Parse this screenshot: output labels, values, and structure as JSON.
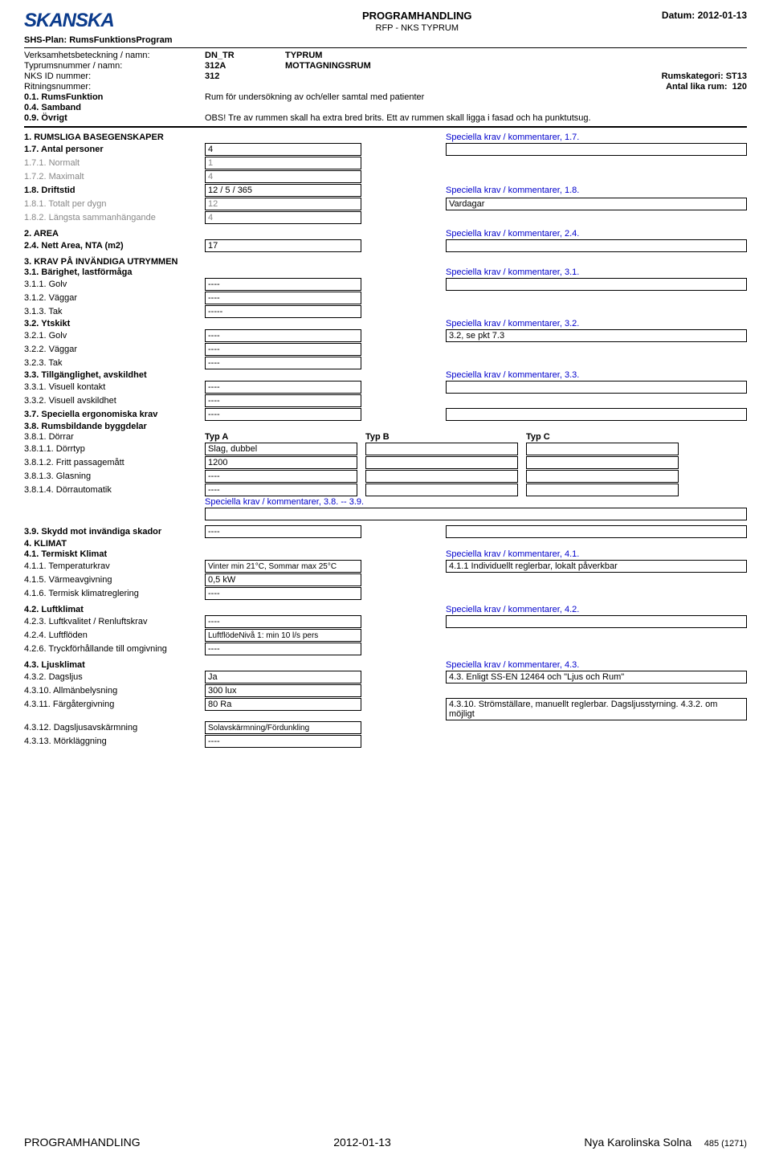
{
  "header": {
    "logo": "SKANSKA",
    "title": "PROGRAMHANDLING",
    "subtitle": "RFP -  NKS TYPRUM",
    "datum_label": "Datum:",
    "datum": "2012-01-13",
    "shs": "SHS-Plan: RumsFunktionsProgram"
  },
  "meta": {
    "r1l": "Verksamhetsbeteckning / namn:",
    "r1c1": "DN_TR",
    "r1c2": "TYPRUM",
    "r2l": "Typrumsnummer / namn:",
    "r2c1": "312A",
    "r2c2": "MOTTAGNINGSRUM",
    "r3l": "NKS ID nummer:",
    "r3c1": "312",
    "r3r_l": "Rumskategori:",
    "r3r_v": "ST13",
    "r4l": "Ritningsnummer:",
    "r4r_l": "Antal lika rum:",
    "r4r_v": "120",
    "r5l": "0.1. RumsFunktion",
    "r5v": "Rum för undersökning av och/eller samtal med patienter",
    "r6l": "0.4. Samband",
    "r7l": "0.9. Övrigt",
    "r7v": "OBS! Tre av rummen skall ha extra bred brits. Ett av rummen skall ligga i fasad och ha punktutsug."
  },
  "s1": {
    "h": "1. RUMSLIGA BASEGENSKAPER",
    "hc": "Speciella krav / kommentarer, 1.7.",
    "r1l": "1.7. Antal personer",
    "r1v": "4",
    "r2l": "1.7.1. Normalt",
    "r2v": "1",
    "r3l": "1.7.2. Maximalt",
    "r3v": "4",
    "r4l": "1.8. Driftstid",
    "r4v": "12 / 5 / 365",
    "r4c": "Speciella krav / kommentarer, 1.8.",
    "r5l": "1.8.1. Totalt per dygn",
    "r5v": "12",
    "r5c": "Vardagar",
    "r6l": "1.8.2. Längsta sammanhängande",
    "r6v": "4"
  },
  "s2": {
    "h": "2. AREA",
    "hc": "Speciella krav / kommentarer, 2.4.",
    "r1l": "2.4. Nett Area, NTA (m2)",
    "r1v": "17"
  },
  "s3": {
    "h": "3. KRAV PÅ INVÄNDIGA UTRYMMEN",
    "h31": "3.1. Bärighet, lastförmåga",
    "h31c": "Speciella krav / kommentarer, 3.1.",
    "r311l": "3.1.1. Golv",
    "r311v": "----",
    "r312l": "3.1.2. Väggar",
    "r312v": "----",
    "r313l": "3.1.3. Tak",
    "r313v": "-----",
    "h32": "3.2. Ytskikt",
    "h32c": "Speciella krav / kommentarer, 3.2.",
    "r321l": "3.2.1. Golv",
    "r321v": "----",
    "r321c": "3.2, se pkt 7.3",
    "r322l": "3.2.2. Väggar",
    "r322v": "----",
    "r323l": "3.2.3. Tak",
    "r323v": "----",
    "h33": "3.3. Tillgänglighet, avskildhet",
    "h33c": "Speciella krav / kommentarer, 3.3.",
    "r331l": "3.3.1. Visuell kontakt",
    "r331v": "----",
    "r332l": "3.3.2. Visuell avskildhet",
    "r332v": "----",
    "h37": "3.7. Speciella ergonomiska krav",
    "r37v": "----",
    "h38": "3.8. Rumsbildande byggdelar",
    "r381l": "3.8.1. Dörrar",
    "typA": "Typ A",
    "typB": "Typ B",
    "typC": "Typ C",
    "r3811l": "3.8.1.1. Dörrtyp",
    "r3811a": "Slag, dubbel",
    "r3812l": "3.8.1.2. Fritt passagemått",
    "r3812a": "1200",
    "r3813l": "3.8.1.3. Glasning",
    "r3813a": "----",
    "r3814l": "3.8.1.4. Dörrautomatik",
    "r3814a": "----",
    "c38": "Speciella krav / kommentarer, 3.8. -- 3.9.",
    "h39": "3.9. Skydd mot invändiga skador",
    "r39v": "----"
  },
  "s4": {
    "h": "4. KLIMAT",
    "h41": "4.1. Termiskt Klimat",
    "h41c": "Speciella krav / kommentarer, 4.1.",
    "r411l": "4.1.1. Temperaturkrav",
    "r411v": "Vinter min 21°C, Sommar max 25°C",
    "r411c": "4.1.1 Individuellt reglerbar, lokalt påverkbar",
    "r415l": "4.1.5. Värmeavgivning",
    "r415v": "0,5 kW",
    "r416l": "4.1.6. Termisk klimatreglering",
    "r416v": "----",
    "h42": "4.2. Luftklimat",
    "h42c": "Speciella krav / kommentarer, 4.2.",
    "r423l": "4.2.3. Luftkvalitet / Renluftskrav",
    "r423v": "----",
    "r424l": "4.2.4. Luftflöden",
    "r424v": "LuftflödeNivå 1: min 10 l/s pers",
    "r426l": "4.2.6. Tryckförhållande till omgivning",
    "r426v": "----",
    "h43": "4.3. Ljusklimat",
    "h43c": "Speciella krav / kommentarer, 4.3.",
    "r432l": "4.3.2. Dagsljus",
    "r432v": "Ja",
    "r432c": "4.3. Enligt SS-EN 12464 och \"Ljus och Rum\"",
    "r4310l": "4.3.10. Allmänbelysning",
    "r4310v": "300 lux",
    "r4311l": "4.3.11. Färgåtergivning",
    "r4311v": "80 Ra",
    "r4311c": "4.3.10. Strömställare, manuellt reglerbar. Dagsljusstyrning. 4.3.2. om möjligt",
    "r4312l": "4.3.12. Dagsljusavskärmning",
    "r4312v": "Solavskärmning/Fördunkling",
    "r4313l": "4.3.13. Mörkläggning",
    "r4313v": "----"
  },
  "footer": {
    "left": "PROGRAMHANDLING",
    "center": "2012-01-13",
    "right": "Nya Karolinska Solna",
    "page": "485 (1271)"
  }
}
